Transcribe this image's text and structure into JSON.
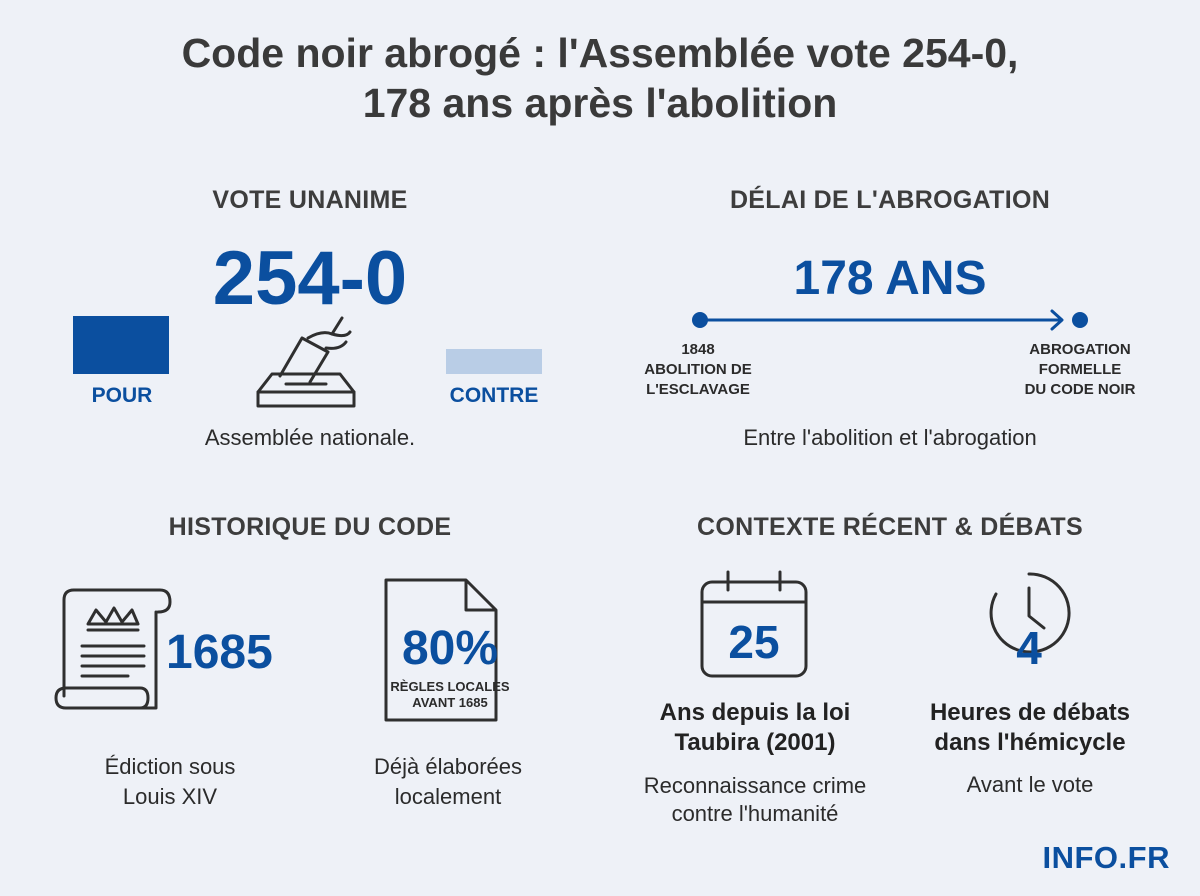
{
  "title": {
    "line1": "Code noir abrogé : l'Assemblée vote 254-0,",
    "line2": "178 ans après l'abolition"
  },
  "vote": {
    "section_title": "VOTE UNANIME",
    "score": "254-0",
    "pour_label": "POUR",
    "contre_label": "CONTRE",
    "pour_color": "#0b4f9f",
    "contre_color": "#b9cde6",
    "icon": "ballot-box-icon",
    "caption": "Assemblée nationale."
  },
  "delay": {
    "section_title": "DÉLAI DE L'ABROGATION",
    "value": "178 ANS",
    "start_label": "1848\nABOLITION DE\nL'ESCLAVAGE",
    "end_label": "ABROGATION\nFORMELLE\nDU CODE NOIR",
    "caption": "Entre l'abolition et l'abrogation"
  },
  "history": {
    "section_title": "HISTORIQUE DU CODE",
    "item1": {
      "icon": "scroll-crown-icon",
      "value": "1685",
      "caption": "Édiction sous\nLouis XIV"
    },
    "item2": {
      "icon": "document-icon",
      "value": "80%",
      "inner_label": "RÈGLES LOCALES\nAVANT 1685",
      "caption": "Déjà élaborées\nlocalement"
    }
  },
  "context": {
    "section_title": "CONTEXTE RÉCENT & DÉBATS",
    "item1": {
      "icon": "calendar-icon",
      "value": "25",
      "headline": "Ans depuis la loi\nTaubira (2001)",
      "caption": "Reconnaissance crime\ncontre l'humanité"
    },
    "item2": {
      "icon": "clock-icon",
      "value": "4",
      "headline": "Heures de débats\ndans l'hémicycle",
      "caption": "Avant le vote"
    }
  },
  "brand": "INFO.FR"
}
